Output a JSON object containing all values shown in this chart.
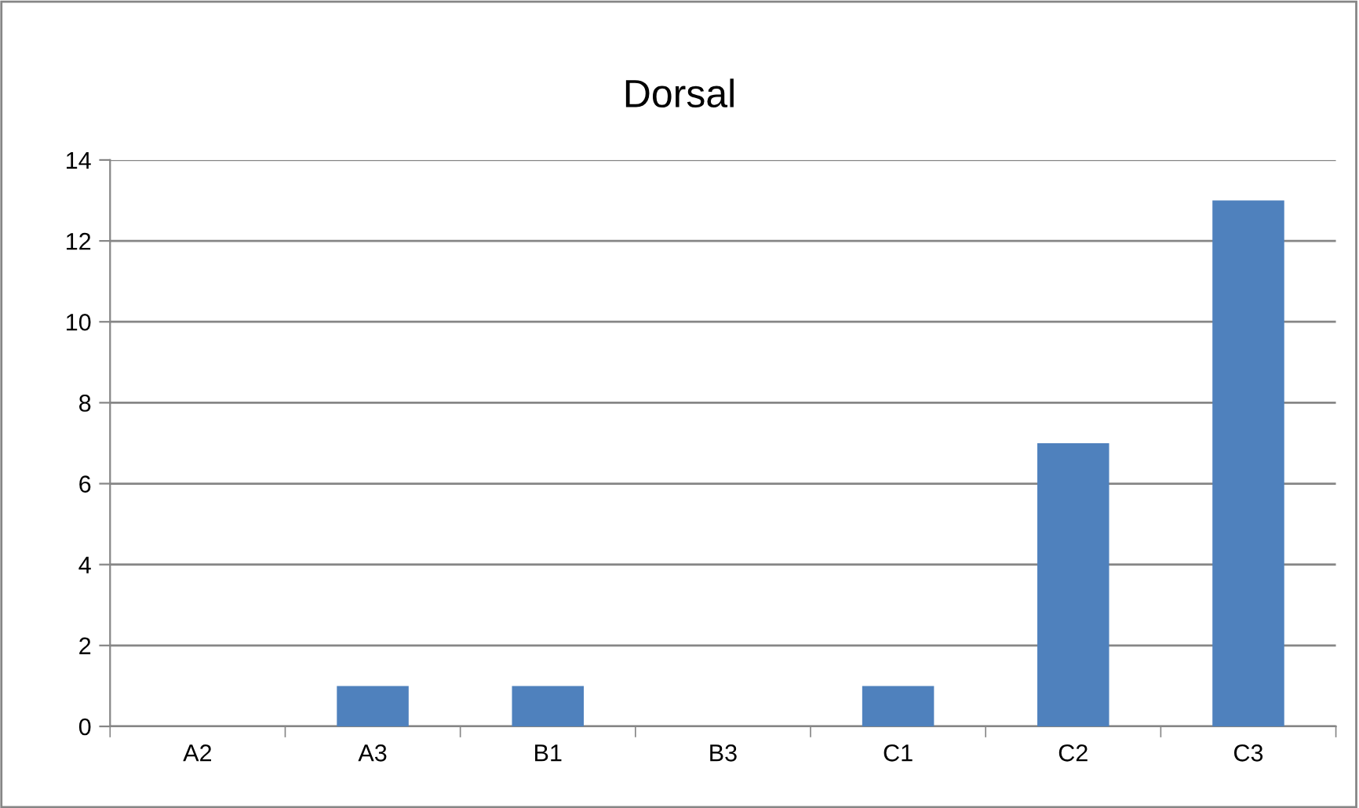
{
  "chart_data": {
    "type": "bar",
    "title": "Dorsal",
    "categories": [
      "A2",
      "A3",
      "B1",
      "B3",
      "C1",
      "C2",
      "C3"
    ],
    "values": [
      0,
      1,
      1,
      0,
      1,
      7,
      13
    ],
    "color": "#4f81bd",
    "ylim": [
      0,
      14
    ],
    "yticks": [
      0,
      2,
      4,
      6,
      8,
      10,
      12,
      14
    ],
    "grid": "y",
    "legend": false
  }
}
